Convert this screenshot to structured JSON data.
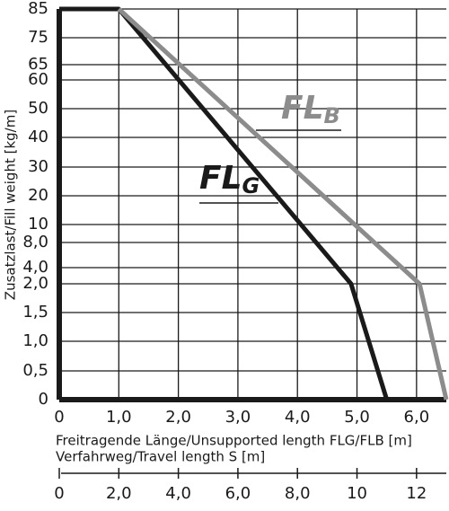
{
  "chart_data": {
    "type": "line",
    "y_label": "Zusatzlast/Fill weight [kg/m]",
    "x_label": "Freitragende Länge/Unsupported length FLG/FLB [m]",
    "x2_label": "Verfahrweg/Travel length S [m]",
    "xlim": [
      0,
      6.5
    ],
    "xticks": [
      0,
      {
        "value": 1,
        "label": "1,0"
      },
      {
        "value": 2,
        "label": "2,0"
      },
      {
        "value": 3,
        "label": "3,0"
      },
      {
        "value": 4,
        "label": "4,0"
      },
      {
        "value": 5,
        "label": "5,0"
      },
      {
        "value": 6,
        "label": "6,0"
      }
    ],
    "x2lim": [
      0,
      13
    ],
    "x2ticks": [
      0,
      {
        "value": 2,
        "label": "2,0"
      },
      {
        "value": 4,
        "label": "4,0"
      },
      {
        "value": 6,
        "label": "6,0"
      },
      {
        "value": 8,
        "label": "8,0"
      },
      10,
      12
    ],
    "ylim": [
      0,
      85
    ],
    "yticks": [
      0,
      {
        "value": 0.5,
        "label": "0,5"
      },
      {
        "value": 1,
        "label": "1,0"
      },
      {
        "value": 1.5,
        "label": "1,5"
      },
      {
        "value": 2,
        "label": "2,0"
      },
      {
        "value": 4,
        "label": "4,0"
      },
      {
        "value": 8,
        "label": "8,0"
      },
      10,
      20,
      30,
      40,
      50,
      60,
      65,
      75,
      85
    ],
    "grid": true,
    "series": [
      {
        "name": "FLG",
        "color": "#1a1a1a",
        "x": [
          0,
          1,
          4.9,
          5.5
        ],
        "values": [
          85,
          85,
          2,
          0
        ]
      },
      {
        "name": "FLB",
        "color": "#8c8c8c",
        "x": [
          1,
          6.05,
          6.5
        ],
        "values": [
          85,
          2,
          0
        ]
      }
    ],
    "annotations": [
      {
        "text": "FL",
        "sub": "B",
        "color": "#8c8c8c"
      },
      {
        "text": "FL",
        "sub": "G",
        "color": "#1a1a1a"
      }
    ]
  }
}
